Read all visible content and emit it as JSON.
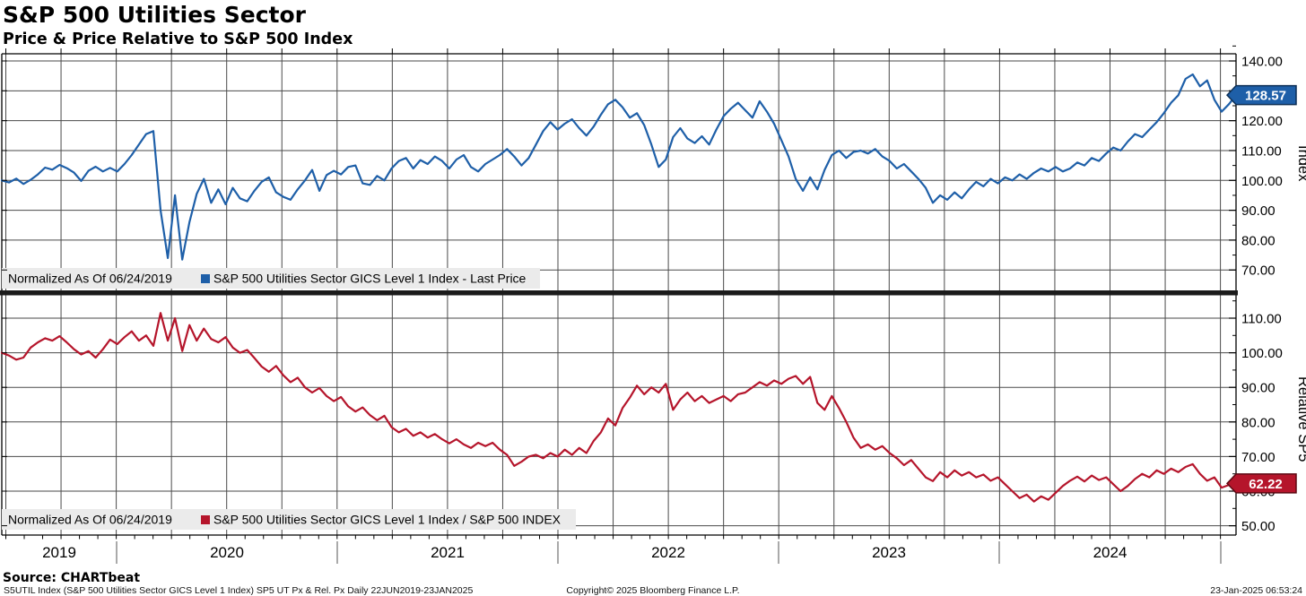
{
  "header": {
    "title": "S&P 500 Utilities Sector",
    "subtitle": "Price & Price Relative to S&P 500 Index"
  },
  "chart_data": {
    "type": "line",
    "x_range": [
      "22JUN2019",
      "23JAN2025"
    ],
    "x_tick_years": [
      "2019",
      "2020",
      "2021",
      "2022",
      "2023",
      "2024"
    ],
    "grid": "on",
    "panels": [
      {
        "name": "price",
        "ylabel": "Index",
        "ylim": [
          63,
          142
        ],
        "yticks": [
          70,
          80,
          90,
          100,
          110,
          120,
          130,
          140
        ],
        "last_value": 128.57,
        "color": "#1e5fa8",
        "tag_border": "#0d2f55",
        "legend": {
          "normalized": "Normalized As Of 06/24/2019",
          "series": "S&P 500 Utilities Sector GICS Level 1 Index - Last Price"
        },
        "values": [
          100.0,
          99.3,
          100.6,
          98.8,
          100.2,
          102.0,
          104.3,
          103.6,
          105.2,
          104.1,
          102.6,
          99.8,
          103.2,
          104.6,
          103.0,
          104.2,
          103.0,
          105.5,
          108.5,
          112.0,
          115.5,
          116.5,
          90.0,
          74.0,
          95.0,
          73.5,
          86.0,
          95.5,
          100.5,
          92.5,
          97.0,
          92.0,
          97.5,
          94.0,
          93.0,
          96.5,
          99.5,
          101.0,
          96.0,
          94.5,
          93.5,
          97.0,
          100.0,
          103.5,
          96.5,
          101.8,
          103.2,
          102.0,
          104.5,
          105.0,
          99.0,
          98.5,
          101.5,
          100.0,
          104.0,
          106.5,
          107.5,
          104.0,
          106.8,
          105.5,
          108.0,
          106.5,
          104.0,
          107.0,
          108.5,
          104.5,
          103.0,
          105.5,
          107.0,
          108.5,
          110.5,
          108.0,
          105.0,
          107.5,
          112.0,
          116.5,
          119.5,
          117.0,
          119.0,
          120.5,
          117.5,
          115.0,
          118.0,
          122.0,
          125.5,
          127.0,
          124.5,
          121.0,
          122.5,
          118.5,
          112.0,
          104.5,
          107.0,
          114.5,
          117.5,
          114.0,
          112.5,
          114.8,
          112.0,
          117.0,
          121.5,
          124.0,
          126.0,
          123.5,
          121.0,
          126.5,
          123.0,
          119.0,
          113.5,
          108.0,
          100.5,
          96.5,
          101.0,
          97.0,
          103.5,
          108.5,
          110.0,
          107.5,
          109.5,
          110.0,
          109.0,
          110.5,
          108.0,
          106.5,
          104.0,
          105.5,
          103.0,
          100.5,
          97.5,
          92.5,
          95.0,
          93.5,
          96.0,
          94.0,
          97.0,
          99.5,
          98.0,
          100.5,
          99.0,
          101.0,
          100.0,
          102.0,
          100.5,
          102.5,
          104.0,
          103.0,
          104.5,
          103.0,
          104.0,
          106.0,
          105.0,
          107.5,
          106.5,
          109.0,
          111.0,
          110.0,
          113.0,
          115.5,
          114.5,
          117.0,
          119.5,
          122.5,
          126.0,
          128.5,
          134.0,
          135.5,
          131.5,
          133.5,
          127.0,
          123.0,
          125.5,
          128.57
        ]
      },
      {
        "name": "relative",
        "ylabel": "Relative SP5",
        "ylim": [
          47,
          116
        ],
        "yticks": [
          50,
          60,
          70,
          80,
          90,
          100,
          110
        ],
        "last_value": 62.22,
        "color": "#b5152b",
        "tag_border": "#5e0a14",
        "legend": {
          "normalized": "Normalized As Of 06/24/2019",
          "series": "S&P 500 Utilities Sector GICS Level 1 Index / S&P 500 INDEX"
        },
        "values": [
          100.0,
          99.2,
          98.0,
          98.6,
          101.5,
          103.0,
          104.2,
          103.5,
          104.8,
          103.0,
          101.0,
          99.5,
          100.5,
          98.6,
          101.0,
          103.8,
          102.5,
          104.5,
          106.2,
          103.5,
          105.0,
          102.0,
          111.5,
          103.5,
          110.0,
          100.5,
          108.0,
          103.5,
          107.0,
          104.0,
          103.0,
          104.5,
          101.5,
          100.0,
          100.8,
          98.5,
          96.0,
          94.5,
          96.2,
          93.5,
          91.5,
          92.8,
          90.0,
          88.5,
          89.8,
          87.5,
          86.0,
          87.2,
          84.5,
          83.0,
          84.2,
          82.0,
          80.5,
          81.8,
          78.5,
          77.0,
          78.0,
          76.0,
          77.0,
          75.5,
          76.5,
          75.0,
          73.8,
          75.0,
          73.5,
          72.5,
          74.0,
          73.0,
          74.0,
          72.0,
          70.5,
          67.3,
          68.5,
          70.0,
          70.5,
          69.5,
          71.0,
          70.0,
          72.0,
          70.5,
          72.5,
          71.0,
          74.5,
          77.0,
          81.0,
          79.0,
          84.0,
          87.0,
          90.5,
          88.0,
          90.0,
          88.5,
          91.0,
          83.5,
          86.5,
          88.5,
          86.0,
          87.5,
          85.5,
          86.5,
          87.5,
          86.0,
          88.0,
          88.5,
          90.0,
          91.5,
          90.5,
          92.0,
          91.0,
          92.5,
          93.3,
          91.0,
          93.0,
          85.5,
          83.5,
          87.5,
          84.0,
          80.0,
          75.5,
          72.5,
          73.5,
          72.0,
          73.0,
          71.0,
          69.5,
          67.5,
          69.0,
          66.5,
          64.0,
          62.9,
          65.5,
          64.0,
          66.0,
          64.5,
          65.5,
          64.0,
          64.8,
          63.0,
          64.0,
          62.0,
          60.0,
          58.0,
          59.0,
          57.0,
          58.5,
          57.5,
          59.5,
          61.5,
          63.0,
          64.2,
          62.8,
          64.5,
          63.2,
          64.0,
          62.0,
          60.0,
          61.5,
          63.5,
          65.0,
          64.0,
          66.0,
          65.0,
          66.5,
          65.5,
          67.0,
          67.8,
          65.0,
          63.0,
          64.0,
          61.0,
          61.8,
          62.22
        ]
      }
    ]
  },
  "footer": {
    "source": "Source: CHARTbeat",
    "description": "S5UTIL Index (S&P 500 Utilities Sector GICS Level 1 Index) SP5 UT Px & Rel. Px  Daily 22JUN2019-23JAN2025",
    "copyright": "Copyright© 2025 Bloomberg Finance L.P.",
    "timestamp": "23-Jan-2025 06:53:24"
  }
}
